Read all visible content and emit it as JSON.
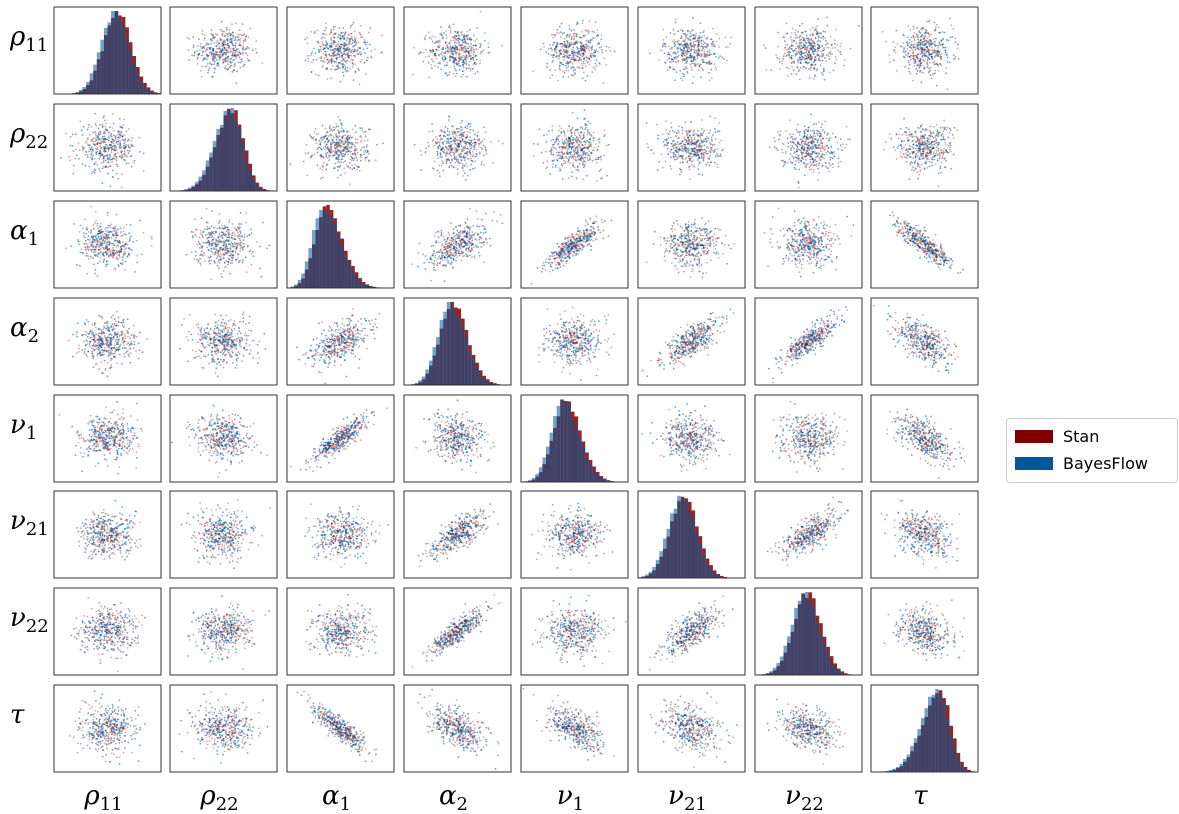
{
  "chart_data": {
    "type": "scatter",
    "subtype": "pairs-plot",
    "parameters": [
      {
        "base": "ρ",
        "sub": "11"
      },
      {
        "base": "ρ",
        "sub": "22"
      },
      {
        "base": "α",
        "sub": "1"
      },
      {
        "base": "α",
        "sub": "2"
      },
      {
        "base": "ν",
        "sub": "1"
      },
      {
        "base": "ν",
        "sub": "21"
      },
      {
        "base": "ν",
        "sub": "22"
      },
      {
        "base": "τ",
        "sub": ""
      }
    ],
    "diagonal": "histogram",
    "off_diagonal": "scatter",
    "grid": false,
    "tick_labels": false,
    "series": [
      {
        "name": "Stan",
        "color": "#7f0000"
      },
      {
        "name": "BayesFlow",
        "color": "#00589a"
      }
    ],
    "histogram_center": [
      0.58,
      0.58,
      0.35,
      0.44,
      0.4,
      0.42,
      0.48,
      0.64
    ],
    "histogram_skew": [
      0.0,
      -0.5,
      0.6,
      0.3,
      0.4,
      0.0,
      0.0,
      -0.7
    ],
    "correlations": [
      {
        "i": 2,
        "j": 3,
        "r": 0.55
      },
      {
        "i": 2,
        "j": 4,
        "r": 0.85
      },
      {
        "i": 2,
        "j": 7,
        "r": -0.88
      },
      {
        "i": 3,
        "j": 5,
        "r": 0.75
      },
      {
        "i": 3,
        "j": 6,
        "r": 0.85
      },
      {
        "i": 3,
        "j": 7,
        "r": -0.55
      },
      {
        "i": 4,
        "j": 7,
        "r": -0.6
      },
      {
        "i": 5,
        "j": 6,
        "r": 0.7
      },
      {
        "i": 5,
        "j": 7,
        "r": -0.25
      },
      {
        "i": 6,
        "j": 7,
        "r": -0.25
      }
    ],
    "legend_position": "right"
  },
  "legend": {
    "stan_label": "Stan",
    "bayesflow_label": "BayesFlow",
    "stan_color": "#7f0000",
    "bayesflow_color": "#00589a"
  }
}
